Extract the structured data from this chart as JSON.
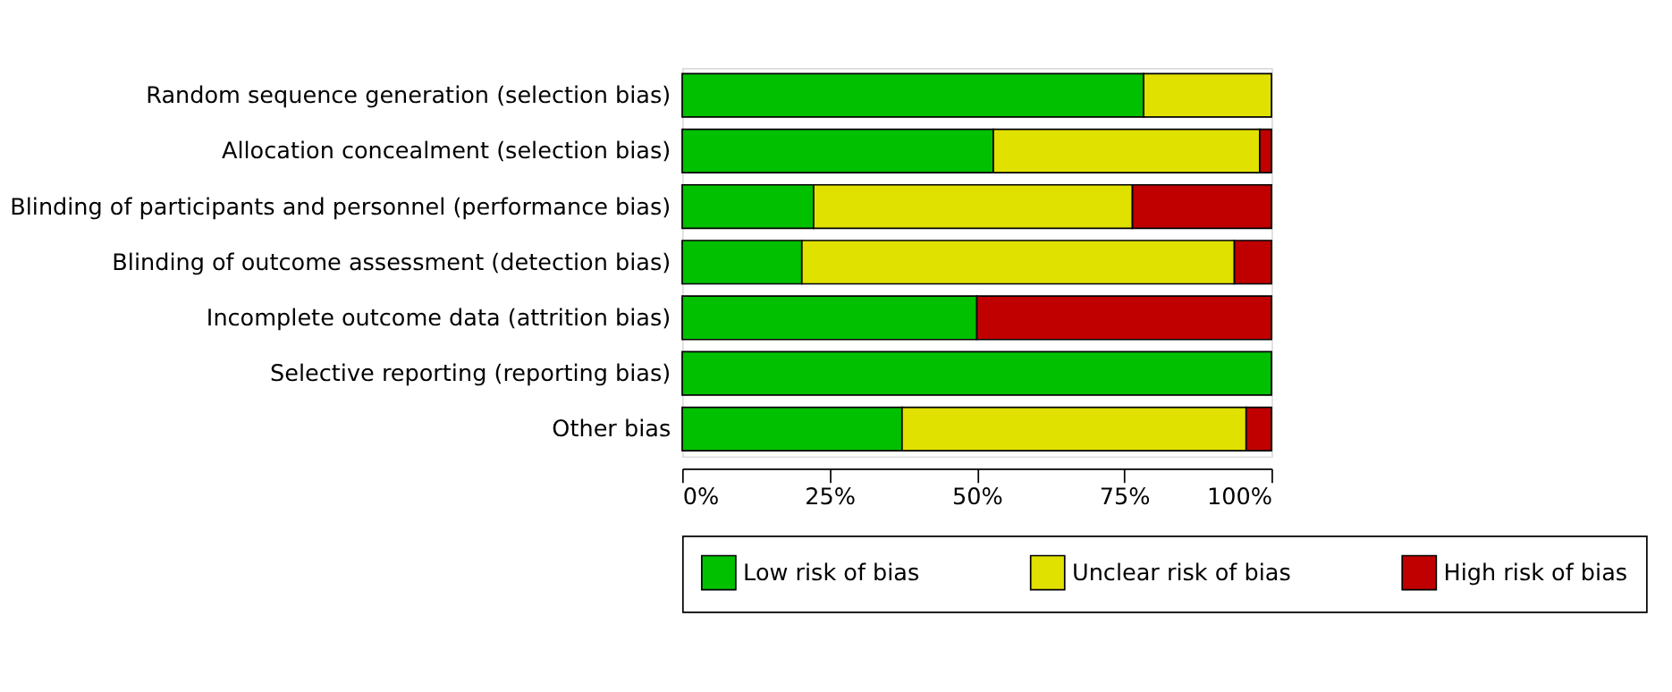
{
  "chart_data": {
    "type": "bar",
    "orientation": "horizontal",
    "stacked": true,
    "categories": [
      "Random sequence generation (selection bias)",
      "Allocation concealment (selection bias)",
      "Blinding of participants and personnel (performance bias)",
      "Blinding of outcome assessment (detection bias)",
      "Incomplete outcome data (attrition bias)",
      "Selective reporting (reporting bias)",
      "Other bias"
    ],
    "series": [
      {
        "name": "Low risk of bias",
        "color": "#00c000",
        "values": [
          78.3,
          52.8,
          22.3,
          20.3,
          50,
          100,
          37.3
        ]
      },
      {
        "name": "Unclear risk of bias",
        "color": "#e1e100",
        "values": [
          21.7,
          45.2,
          54.1,
          73.4,
          null,
          null,
          58.4
        ]
      },
      {
        "name": "High risk of bias",
        "color": "#c00000",
        "values": [
          null,
          2,
          23.6,
          6.3,
          50,
          null,
          4.3
        ]
      }
    ],
    "xlim": [
      0,
      100
    ],
    "xticks": [
      {
        "value": 0,
        "label": "0%"
      },
      {
        "value": 25,
        "label": "25%"
      },
      {
        "value": 50,
        "label": "50%"
      },
      {
        "value": 75,
        "label": "75%"
      },
      {
        "value": 100,
        "label": "100%"
      }
    ],
    "grid": false,
    "legend": "bottom"
  }
}
